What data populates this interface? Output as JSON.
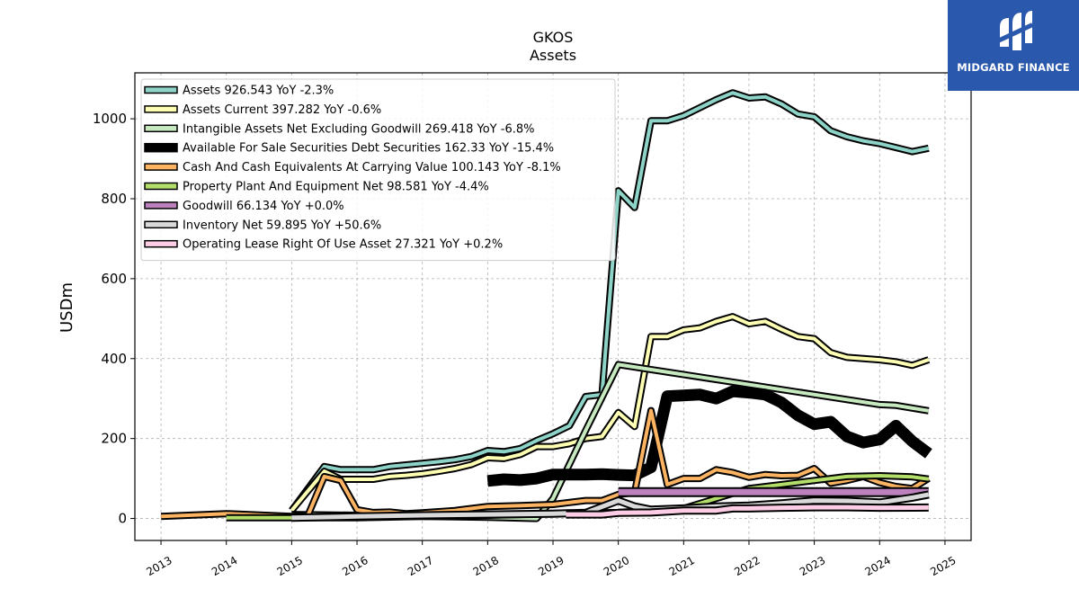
{
  "brand": {
    "name": "MIDGARD FINANCE",
    "bg_color": "#2a58ac"
  },
  "chart_data": {
    "type": "line",
    "title": "GKOS",
    "subtitle": "Assets",
    "ylabel": "USDm",
    "xlabel": "",
    "xlim": [
      2012.6,
      2025.4
    ],
    "ylim": [
      -55,
      1115
    ],
    "grid": true,
    "legend_position": "top-left",
    "x_ticks": [
      "2013",
      "2014",
      "2015",
      "2016",
      "2017",
      "2018",
      "2019",
      "2020",
      "2021",
      "2022",
      "2023",
      "2024",
      "2025"
    ],
    "y_ticks": [
      "0",
      "200",
      "400",
      "600",
      "800",
      "1000"
    ],
    "series": [
      {
        "name": "Assets",
        "legend_label": "Assets  926.543 YoY -2.3%",
        "color": "#8dd3c7",
        "width": 4,
        "points": [
          [
            2015.0,
            20
          ],
          [
            2015.5,
            130
          ],
          [
            2015.75,
            122
          ],
          [
            2016.0,
            122
          ],
          [
            2016.25,
            122
          ],
          [
            2016.5,
            130
          ],
          [
            2016.75,
            134
          ],
          [
            2017.0,
            138
          ],
          [
            2017.25,
            142
          ],
          [
            2017.5,
            147
          ],
          [
            2017.75,
            155
          ],
          [
            2018.0,
            170
          ],
          [
            2018.25,
            167
          ],
          [
            2018.5,
            175
          ],
          [
            2018.75,
            195
          ],
          [
            2019.0,
            212
          ],
          [
            2019.25,
            232
          ],
          [
            2019.5,
            305
          ],
          [
            2019.75,
            310
          ],
          [
            2020.0,
            820
          ],
          [
            2020.25,
            778
          ],
          [
            2020.5,
            995
          ],
          [
            2020.75,
            995
          ],
          [
            2021.0,
            1008
          ],
          [
            2021.25,
            1028
          ],
          [
            2021.5,
            1048
          ],
          [
            2021.75,
            1065
          ],
          [
            2022.0,
            1052
          ],
          [
            2022.25,
            1055
          ],
          [
            2022.5,
            1037
          ],
          [
            2022.75,
            1012
          ],
          [
            2023.0,
            1005
          ],
          [
            2023.25,
            970
          ],
          [
            2023.5,
            955
          ],
          [
            2023.75,
            945
          ],
          [
            2024.0,
            938
          ],
          [
            2024.25,
            928
          ],
          [
            2024.5,
            918
          ],
          [
            2024.75,
            926.543
          ]
        ]
      },
      {
        "name": "Assets Current",
        "legend_label": "Assets Current  397.282 YoY -0.6%",
        "color": "#ffffb3",
        "width": 4,
        "points": [
          [
            2015.0,
            20
          ],
          [
            2015.5,
            118
          ],
          [
            2015.75,
            98
          ],
          [
            2016.0,
            98
          ],
          [
            2016.25,
            98
          ],
          [
            2016.5,
            105
          ],
          [
            2016.75,
            108
          ],
          [
            2017.0,
            112
          ],
          [
            2017.25,
            118
          ],
          [
            2017.5,
            125
          ],
          [
            2017.75,
            135
          ],
          [
            2018.0,
            152
          ],
          [
            2018.25,
            150
          ],
          [
            2018.5,
            160
          ],
          [
            2018.75,
            180
          ],
          [
            2019.0,
            180
          ],
          [
            2019.25,
            187
          ],
          [
            2019.5,
            200
          ],
          [
            2019.75,
            205
          ],
          [
            2020.0,
            265
          ],
          [
            2020.25,
            230
          ],
          [
            2020.5,
            455
          ],
          [
            2020.75,
            455
          ],
          [
            2021.0,
            472
          ],
          [
            2021.25,
            477
          ],
          [
            2021.5,
            493
          ],
          [
            2021.75,
            505
          ],
          [
            2022.0,
            487
          ],
          [
            2022.25,
            493
          ],
          [
            2022.5,
            473
          ],
          [
            2022.75,
            455
          ],
          [
            2023.0,
            450
          ],
          [
            2023.25,
            415
          ],
          [
            2023.5,
            403
          ],
          [
            2023.75,
            400
          ],
          [
            2024.0,
            397
          ],
          [
            2024.25,
            392
          ],
          [
            2024.5,
            383
          ],
          [
            2024.75,
            397.282
          ]
        ]
      },
      {
        "name": "Intangible Assets Net Excluding Goodwill",
        "legend_label": "Intangible Assets Net Excluding Goodwill  269.418 YoY -6.8%",
        "color": "#c7e9c0",
        "width": 4,
        "points": [
          [
            2015.0,
            10
          ],
          [
            2016.0,
            8
          ],
          [
            2017.0,
            5
          ],
          [
            2018.0,
            3
          ],
          [
            2018.75,
            0
          ],
          [
            2019.0,
            50
          ],
          [
            2019.5,
            220
          ],
          [
            2020.0,
            385
          ],
          [
            2024.0,
            285
          ],
          [
            2024.25,
            283
          ],
          [
            2024.75,
            269.418
          ]
        ]
      },
      {
        "name": "Available For Sale Securities Debt Securities",
        "legend_label": "Available For Sale Securities Debt Securities  162.33 YoY -15.4%",
        "color": "#000000",
        "width": 9,
        "points": [
          [
            2018.0,
            94
          ],
          [
            2018.25,
            98
          ],
          [
            2018.5,
            96
          ],
          [
            2018.75,
            100
          ],
          [
            2019.0,
            110
          ],
          [
            2019.25,
            110
          ],
          [
            2019.5,
            110
          ],
          [
            2019.75,
            111
          ],
          [
            2020.0,
            109
          ],
          [
            2020.25,
            108
          ],
          [
            2020.5,
            128
          ],
          [
            2020.75,
            306
          ],
          [
            2021.0,
            308
          ],
          [
            2021.25,
            310
          ],
          [
            2021.5,
            300
          ],
          [
            2021.75,
            318
          ],
          [
            2022.0,
            315
          ],
          [
            2022.25,
            310
          ],
          [
            2022.5,
            290
          ],
          [
            2022.75,
            258
          ],
          [
            2023.0,
            236
          ],
          [
            2023.25,
            242
          ],
          [
            2023.5,
            205
          ],
          [
            2023.75,
            190
          ],
          [
            2024.0,
            198
          ],
          [
            2024.25,
            232
          ],
          [
            2024.5,
            193
          ],
          [
            2024.75,
            162.33
          ]
        ]
      },
      {
        "name": "Cash And Cash Equivalents At Carrying Value",
        "legend_label": "Cash And Cash Equivalents At Carrying Value  100.143 YoY -8.1%",
        "color": "#fdb462",
        "width": 4,
        "points": [
          [
            2013.0,
            5
          ],
          [
            2014.0,
            12
          ],
          [
            2015.0,
            5
          ],
          [
            2015.25,
            8
          ],
          [
            2015.5,
            105
          ],
          [
            2015.75,
            95
          ],
          [
            2016.0,
            22
          ],
          [
            2016.25,
            15
          ],
          [
            2016.5,
            16
          ],
          [
            2016.75,
            12
          ],
          [
            2017.0,
            14
          ],
          [
            2017.5,
            20
          ],
          [
            2018.0,
            30
          ],
          [
            2018.5,
            32
          ],
          [
            2019.0,
            35
          ],
          [
            2019.5,
            45
          ],
          [
            2019.75,
            45
          ],
          [
            2020.0,
            60
          ],
          [
            2020.25,
            65
          ],
          [
            2020.5,
            270
          ],
          [
            2020.75,
            85
          ],
          [
            2021.0,
            100
          ],
          [
            2021.25,
            100
          ],
          [
            2021.5,
            122
          ],
          [
            2021.75,
            115
          ],
          [
            2022.0,
            103
          ],
          [
            2022.25,
            110
          ],
          [
            2022.5,
            107
          ],
          [
            2022.75,
            108
          ],
          [
            2023.0,
            125
          ],
          [
            2023.25,
            88
          ],
          [
            2023.5,
            95
          ],
          [
            2023.75,
            105
          ],
          [
            2024.0,
            90
          ],
          [
            2024.25,
            80
          ],
          [
            2024.5,
            75
          ],
          [
            2024.75,
            100.143
          ]
        ]
      },
      {
        "name": "Property Plant And Equipment Net",
        "legend_label": "Property Plant And Equipment Net  98.581 YoY -4.4%",
        "color": "#b3de69",
        "width": 4,
        "points": [
          [
            2014.0,
            2
          ],
          [
            2015.0,
            2
          ],
          [
            2016.0,
            2
          ],
          [
            2017.0,
            5
          ],
          [
            2018.0,
            8
          ],
          [
            2019.0,
            12
          ],
          [
            2020.0,
            15
          ],
          [
            2021.0,
            25
          ],
          [
            2021.5,
            50
          ],
          [
            2022.0,
            75
          ],
          [
            2022.5,
            85
          ],
          [
            2023.0,
            95
          ],
          [
            2023.5,
            105
          ],
          [
            2024.0,
            107
          ],
          [
            2024.5,
            104
          ],
          [
            2024.75,
            98.581
          ]
        ]
      },
      {
        "name": "Goodwill",
        "legend_label": "Goodwill  66.134 YoY +0.0%",
        "color": "#bc80bd",
        "width": 7,
        "points": [
          [
            2020.0,
            66.134
          ],
          [
            2024.75,
            66.134
          ]
        ]
      },
      {
        "name": "Inventory Net",
        "legend_label": "Inventory Net  59.895 YoY +50.6%",
        "color": "#d9d9d9",
        "width": 5,
        "points": [
          [
            2015.0,
            2
          ],
          [
            2016.0,
            5
          ],
          [
            2017.0,
            8
          ],
          [
            2018.0,
            10
          ],
          [
            2019.0,
            12
          ],
          [
            2019.5,
            14
          ],
          [
            2020.0,
            45
          ],
          [
            2020.25,
            30
          ],
          [
            2020.5,
            22
          ],
          [
            2021.0,
            25
          ],
          [
            2021.5,
            30
          ],
          [
            2022.0,
            32
          ],
          [
            2022.5,
            38
          ],
          [
            2023.0,
            45
          ],
          [
            2023.5,
            44
          ],
          [
            2024.0,
            40
          ],
          [
            2024.5,
            52
          ],
          [
            2024.75,
            59.895
          ]
        ]
      },
      {
        "name": "Operating Lease Right Of Use Asset",
        "legend_label": "Operating Lease Right Of Use Asset  27.321 YoY +0.2%",
        "color": "#fccde5",
        "width": 5,
        "points": [
          [
            2019.2,
            10
          ],
          [
            2019.75,
            10
          ],
          [
            2020.0,
            14
          ],
          [
            2020.5,
            15
          ],
          [
            2021.0,
            20
          ],
          [
            2021.5,
            20
          ],
          [
            2021.75,
            25
          ],
          [
            2022.0,
            25
          ],
          [
            2022.5,
            27
          ],
          [
            2023.0,
            28
          ],
          [
            2023.5,
            28
          ],
          [
            2024.0,
            27
          ],
          [
            2024.75,
            27.321
          ]
        ]
      }
    ]
  }
}
